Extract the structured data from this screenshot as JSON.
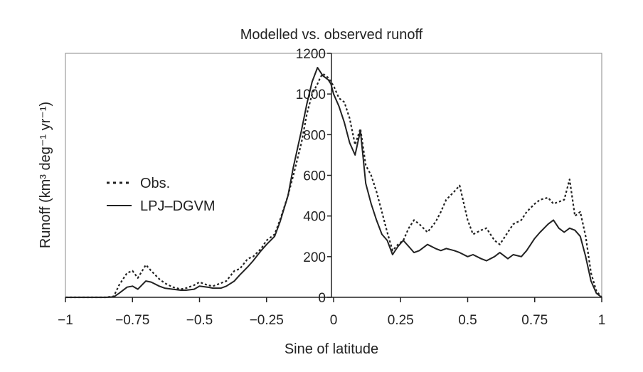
{
  "chart_data": {
    "type": "line",
    "title": "Modelled vs. observed runoff",
    "xlabel": "Sine of latitude",
    "ylabel": "Runoff (km³ deg⁻¹ yr⁻¹)",
    "xlim": [
      -1,
      1
    ],
    "ylim": [
      0,
      1200
    ],
    "x_ticks": [
      -1,
      -0.75,
      -0.5,
      -0.25,
      0,
      0.25,
      0.5,
      0.75,
      1
    ],
    "x_tick_labels": [
      "−1",
      "−0.75",
      "−0.5",
      "−0.25",
      "0",
      "0.25",
      "0.5",
      "0.75",
      "1"
    ],
    "y_ticks": [
      0,
      200,
      400,
      600,
      800,
      1000,
      1200
    ],
    "y_tick_labels": [
      "0",
      "200",
      "400",
      "600",
      "800",
      "1000",
      "1200"
    ],
    "grid": false,
    "legend_position": "left",
    "series": [
      {
        "name": "Obs.",
        "style": "dotted",
        "color": "#222222",
        "x": [
          -1,
          -0.85,
          -0.82,
          -0.8,
          -0.77,
          -0.75,
          -0.73,
          -0.7,
          -0.68,
          -0.65,
          -0.63,
          -0.6,
          -0.57,
          -0.55,
          -0.52,
          -0.5,
          -0.47,
          -0.45,
          -0.42,
          -0.4,
          -0.37,
          -0.35,
          -0.32,
          -0.3,
          -0.27,
          -0.25,
          -0.22,
          -0.2,
          -0.17,
          -0.15,
          -0.12,
          -0.1,
          -0.08,
          -0.06,
          -0.05,
          -0.04,
          -0.03,
          -0.02,
          -0.01,
          0,
          0.02,
          0.04,
          0.06,
          0.08,
          0.1,
          0.12,
          0.14,
          0.16,
          0.18,
          0.2,
          0.22,
          0.24,
          0.26,
          0.28,
          0.3,
          0.32,
          0.35,
          0.38,
          0.4,
          0.42,
          0.45,
          0.47,
          0.5,
          0.52,
          0.55,
          0.57,
          0.6,
          0.62,
          0.65,
          0.67,
          0.7,
          0.72,
          0.75,
          0.77,
          0.8,
          0.82,
          0.84,
          0.86,
          0.88,
          0.9,
          0.92,
          0.94,
          0.96,
          0.98,
          1
        ],
        "y": [
          0,
          0,
          5,
          60,
          120,
          130,
          95,
          160,
          130,
          90,
          70,
          50,
          40,
          45,
          60,
          75,
          60,
          55,
          70,
          80,
          130,
          140,
          190,
          200,
          240,
          280,
          310,
          380,
          500,
          600,
          760,
          900,
          1000,
          1050,
          1080,
          1100,
          1090,
          1080,
          1060,
          1040,
          980,
          960,
          880,
          750,
          830,
          650,
          600,
          520,
          420,
          320,
          230,
          260,
          280,
          340,
          380,
          360,
          320,
          370,
          420,
          480,
          520,
          550,
          380,
          310,
          330,
          340,
          280,
          260,
          320,
          360,
          380,
          420,
          460,
          480,
          490,
          460,
          470,
          480,
          580,
          400,
          420,
          300,
          120,
          30,
          0
        ]
      },
      {
        "name": "LPJ–DGVM",
        "style": "solid",
        "color": "#222222",
        "x": [
          -1,
          -0.85,
          -0.82,
          -0.8,
          -0.77,
          -0.75,
          -0.73,
          -0.7,
          -0.68,
          -0.65,
          -0.63,
          -0.6,
          -0.57,
          -0.55,
          -0.52,
          -0.5,
          -0.47,
          -0.45,
          -0.42,
          -0.4,
          -0.37,
          -0.35,
          -0.32,
          -0.3,
          -0.27,
          -0.25,
          -0.22,
          -0.2,
          -0.17,
          -0.15,
          -0.12,
          -0.1,
          -0.08,
          -0.06,
          -0.05,
          -0.04,
          -0.03,
          -0.02,
          -0.01,
          0,
          0.02,
          0.04,
          0.06,
          0.08,
          0.1,
          0.12,
          0.14,
          0.16,
          0.18,
          0.2,
          0.22,
          0.24,
          0.26,
          0.28,
          0.3,
          0.32,
          0.35,
          0.38,
          0.4,
          0.42,
          0.45,
          0.47,
          0.5,
          0.52,
          0.55,
          0.57,
          0.6,
          0.62,
          0.65,
          0.67,
          0.7,
          0.72,
          0.75,
          0.77,
          0.8,
          0.82,
          0.84,
          0.86,
          0.88,
          0.9,
          0.92,
          0.94,
          0.96,
          0.98,
          1
        ],
        "y": [
          0,
          0,
          2,
          20,
          50,
          55,
          40,
          80,
          75,
          55,
          45,
          40,
          35,
          35,
          40,
          55,
          50,
          45,
          45,
          55,
          80,
          110,
          150,
          180,
          230,
          260,
          300,
          370,
          500,
          640,
          820,
          950,
          1060,
          1130,
          1110,
          1090,
          1080,
          1070,
          1050,
          1000,
          940,
          860,
          760,
          700,
          820,
          560,
          460,
          380,
          310,
          280,
          210,
          250,
          280,
          250,
          220,
          230,
          260,
          240,
          230,
          240,
          230,
          220,
          200,
          210,
          190,
          180,
          200,
          220,
          190,
          210,
          200,
          230,
          290,
          320,
          360,
          380,
          340,
          320,
          340,
          330,
          300,
          200,
          80,
          20,
          0
        ]
      }
    ]
  }
}
